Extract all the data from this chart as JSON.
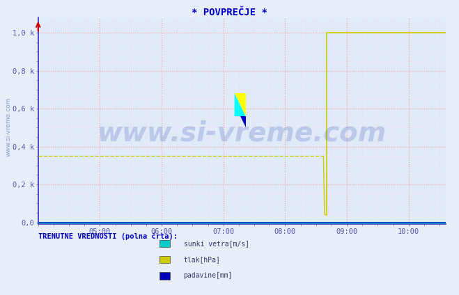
{
  "title": "* POVPREČJE *",
  "title_color": "#0000cc",
  "title_fontsize": 10,
  "bg_color": "#e8eef8",
  "plot_bg_color": "#e0eaf8",
  "ylabel_text": "www.si-vreme.com",
  "xlabel_ticks": [
    "05:00",
    "06:00",
    "07:00",
    "08:00",
    "09:00",
    "10:00"
  ],
  "xlabel_tick_positions": [
    1,
    2,
    3,
    4,
    5,
    6
  ],
  "ytick_labels": [
    "0,0",
    "0,2 k",
    "0,4 k",
    "0,6 k",
    "0,8 k",
    "1,0 k"
  ],
  "ytick_positions": [
    0.0,
    0.2,
    0.4,
    0.6,
    0.8,
    1.0
  ],
  "xmin": 0.0,
  "xmax": 6.6,
  "ymin": -0.01,
  "ymax": 1.08,
  "grid_color_major": "#ff9999",
  "grid_color_minor": "#ffcccc",
  "arrow_color": "#cc0000",
  "line_yellow_color": "#cccc00",
  "line_blue_color": "#0000bb",
  "line_cyan_color": "#00cccc",
  "legend_label1": "sunki vetra[m/s]",
  "legend_label2": "tlak[hPa]",
  "legend_label3": "padavine[mm]",
  "legend_color1": "#00cccc",
  "legend_color2": "#cccc00",
  "legend_color3": "#0000bb",
  "footer_text": "TRENUTNE VREDNOSTI (polna črta):",
  "footer_color": "#0000bb",
  "watermark_text": "www.si-vreme.com",
  "watermark_color": "#1133aa",
  "watermark_alpha": 0.18,
  "watermark_fontsize": 28,
  "axis_color": "#3333bb",
  "tick_color": "#5555aa"
}
